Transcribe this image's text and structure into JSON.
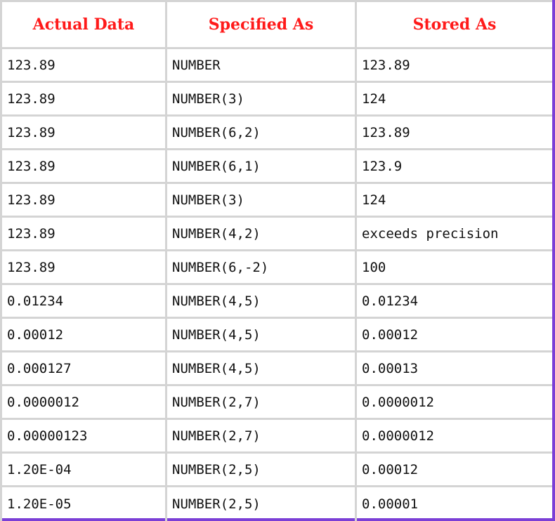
{
  "table": {
    "headers": [
      "Actual Data",
      "Specified As",
      "Stored As"
    ],
    "rows": [
      [
        "123.89",
        "NUMBER",
        "123.89"
      ],
      [
        "123.89",
        "NUMBER(3)",
        "124"
      ],
      [
        "123.89",
        "NUMBER(6,2)",
        "123.89"
      ],
      [
        "123.89",
        "NUMBER(6,1)",
        "123.9"
      ],
      [
        "123.89",
        "NUMBER(3)",
        "124"
      ],
      [
        "123.89",
        "NUMBER(4,2)",
        "exceeds precision"
      ],
      [
        "123.89",
        "NUMBER(6,-2)",
        "100"
      ],
      [
        "0.01234",
        "NUMBER(4,5)",
        "0.01234"
      ],
      [
        "0.00012",
        "NUMBER(4,5)",
        "0.00012"
      ],
      [
        "0.000127",
        "NUMBER(4,5)",
        "0.00013"
      ],
      [
        "0.0000012",
        "NUMBER(2,7)",
        "0.0000012"
      ],
      [
        "0.00000123",
        "NUMBER(2,7)",
        "0.0000012"
      ],
      [
        "1.20E-04",
        "NUMBER(2,5)",
        "0.00012"
      ],
      [
        "1.20E-05",
        "NUMBER(2,5)",
        "0.00001"
      ]
    ]
  },
  "colors": {
    "header_text": "#ff1a1a",
    "grid": "#d4d4d4",
    "frame_accent": "#7b3fd6"
  }
}
